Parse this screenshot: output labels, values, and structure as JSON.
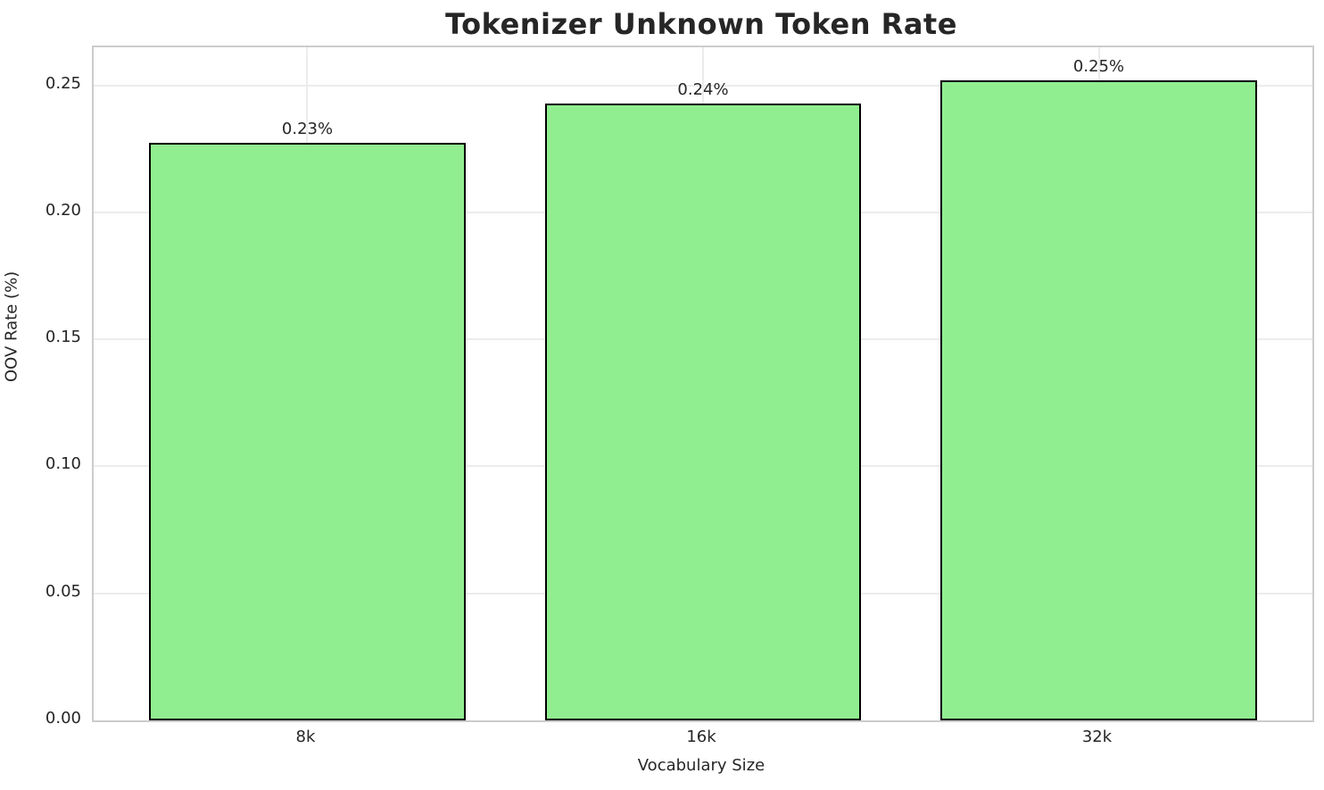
{
  "chart_data": {
    "type": "bar",
    "title": "Tokenizer Unknown Token Rate",
    "xlabel": "Vocabulary Size",
    "ylabel": "OOV Rate (%)",
    "categories": [
      "8k",
      "16k",
      "32k"
    ],
    "values": [
      0.2275,
      0.243,
      0.252
    ],
    "bar_labels": [
      "0.23%",
      "0.24%",
      "0.25%"
    ],
    "yticks": [
      0,
      0.05,
      0.1,
      0.15,
      0.2,
      0.25
    ],
    "ytick_labels": [
      "0.00",
      "0.05",
      "0.10",
      "0.15",
      "0.20",
      "0.25"
    ],
    "ylim": [
      0,
      0.265
    ],
    "xlim": [
      -0.54,
      2.54
    ],
    "bar_width": 0.8,
    "grid": true,
    "legend_position": "none",
    "colors": {
      "bar_fill": "#90EE90",
      "bar_edge": "#000000",
      "grid": "#ececec",
      "spine": "#cccccc",
      "text": "#262626"
    }
  }
}
